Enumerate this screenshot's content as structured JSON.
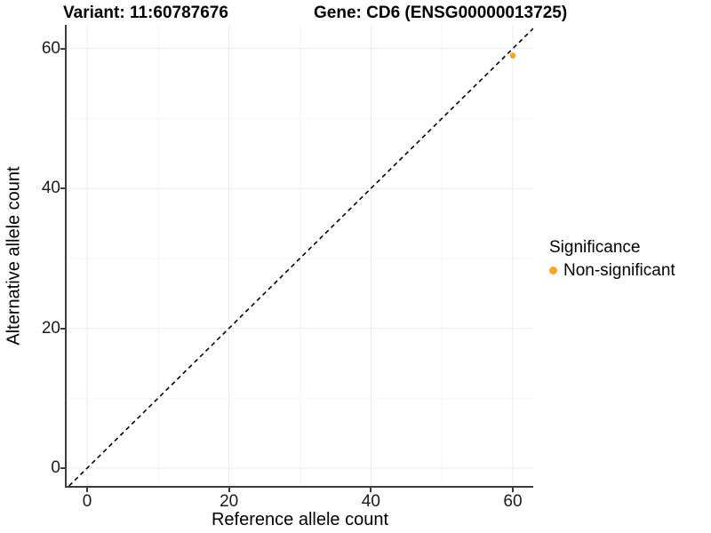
{
  "chart_data": {
    "type": "scatter",
    "title_left": "Variant: 11:60787676",
    "title_right": "Gene: CD6 (ENSG00000013725)",
    "xlabel": "Reference allele count",
    "ylabel": "Alternative allele count",
    "xlim": [
      -2.88,
      62.88
    ],
    "ylim": [
      -2.54,
      63.39
    ],
    "xticks": [
      0,
      20,
      40,
      60
    ],
    "yticks": [
      0,
      20,
      40,
      60
    ],
    "xminor": [
      10,
      30,
      50
    ],
    "yminor": [
      10,
      30,
      50
    ],
    "grid": "major and minor, light gray on white",
    "reference_line": {
      "kind": "identity",
      "slope": 1,
      "intercept": 0,
      "style": "dashed",
      "color": "#000000"
    },
    "series": [
      {
        "name": "Non-significant",
        "color": "#FAA52B",
        "points": [
          {
            "x": 60,
            "y": 59
          }
        ]
      }
    ],
    "legend": {
      "title": "Significance",
      "position": "right",
      "items": [
        {
          "label": "Non-significant",
          "color": "#FAA52B"
        }
      ]
    },
    "colors": {
      "grid_major": "#EBEBEB",
      "grid_minor": "#F5F5F5",
      "axis_line": "#3C3C3C",
      "tick_label": "#1A1A1A",
      "background": "#FFFFFF"
    }
  }
}
